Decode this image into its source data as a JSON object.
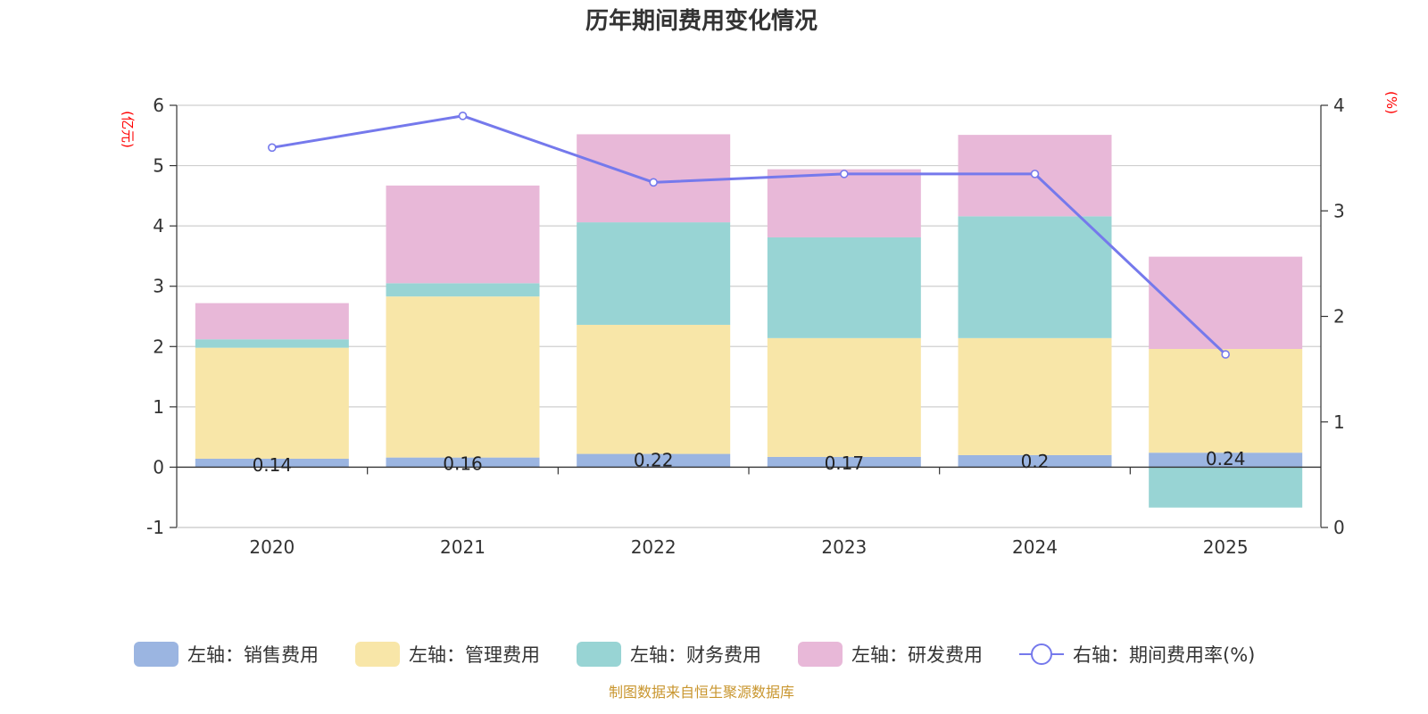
{
  "chart_data": {
    "type": "bar",
    "title": "历年期间费用变化情况",
    "categories": [
      "2020",
      "2021",
      "2022",
      "2023",
      "2024",
      "2025"
    ],
    "left_axis": {
      "unit": "(亿元)",
      "ylim": [
        -1,
        6
      ],
      "ticks": [
        "-1",
        "0",
        "1",
        "2",
        "3",
        "4",
        "5",
        "6"
      ]
    },
    "right_axis": {
      "unit": "(%)",
      "ylim": [
        0,
        4
      ],
      "ticks": [
        "0",
        "1",
        "2",
        "3",
        "4"
      ]
    },
    "series": [
      {
        "name": "左轴：销售费用",
        "type": "bar",
        "axis": "left",
        "color": "#9bb5e1",
        "values": [
          0.14,
          0.16,
          0.22,
          0.17,
          0.2,
          0.24
        ],
        "labels": [
          "0.14",
          "0.16",
          "0.22",
          "0.17",
          "0.2",
          "0.24"
        ]
      },
      {
        "name": "左轴：管理费用",
        "type": "bar",
        "axis": "left",
        "color": "#f8e6a8",
        "values": [
          1.84,
          2.67,
          2.14,
          1.97,
          1.94,
          1.72
        ]
      },
      {
        "name": "左轴：财务费用",
        "type": "bar",
        "axis": "left",
        "color": "#98d4d4",
        "values": [
          0.14,
          0.22,
          1.7,
          1.67,
          2.02,
          -0.67
        ]
      },
      {
        "name": "左轴：研发费用",
        "type": "bar",
        "axis": "left",
        "color": "#e8b8d8",
        "values": [
          0.6,
          1.62,
          1.46,
          1.13,
          1.35,
          1.53
        ]
      },
      {
        "name": "右轴：期间费用率(%)",
        "type": "line",
        "axis": "right",
        "color": "#7579ec",
        "values": [
          3.6,
          3.9,
          3.27,
          3.35,
          3.35,
          1.64
        ]
      }
    ],
    "grid": true,
    "legend_position": "bottom"
  },
  "footer": {
    "source": "制图数据来自恒生聚源数据库"
  }
}
